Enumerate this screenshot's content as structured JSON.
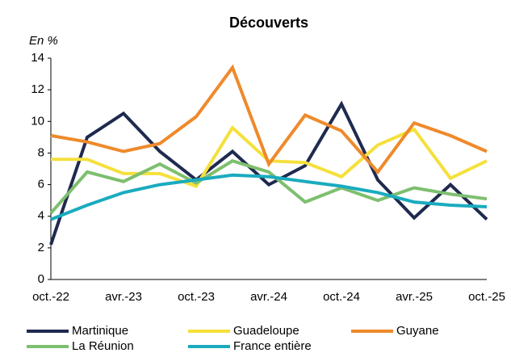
{
  "chart_data": {
    "type": "line",
    "title": "Découverts",
    "y_label": "En %",
    "categories": [
      "oct.-22",
      null,
      "avr.-23",
      null,
      "oct.-23",
      null,
      "avr.-24",
      null,
      "oct.-24",
      null,
      "avr.-25",
      null,
      "oct.-25"
    ],
    "series": [
      {
        "name": "Martinique",
        "color": "#1f2a4f",
        "values": [
          2.2,
          9.0,
          10.5,
          8.1,
          6.3,
          8.1,
          6.0,
          7.2,
          11.1,
          6.3,
          3.9,
          6.0,
          3.8
        ]
      },
      {
        "name": "Guadeloupe",
        "color": "#f5e03c",
        "values": [
          7.6,
          7.6,
          6.7,
          6.7,
          5.9,
          9.6,
          7.5,
          7.4,
          6.5,
          8.5,
          9.5,
          6.4,
          7.5
        ]
      },
      {
        "name": "Guyane",
        "color": "#ee8a2c",
        "values": [
          9.1,
          8.7,
          8.1,
          8.6,
          10.3,
          13.4,
          7.3,
          10.4,
          9.4,
          6.8,
          9.9,
          9.1,
          8.1
        ]
      },
      {
        "name": "La Réunion",
        "color": "#7dbf6e",
        "values": [
          4.2,
          6.8,
          6.2,
          7.3,
          6.1,
          7.5,
          6.8,
          4.9,
          5.8,
          5.0,
          5.8,
          5.4,
          5.1
        ]
      },
      {
        "name": "France entière",
        "color": "#1aabbf",
        "values": [
          3.8,
          4.7,
          5.5,
          6.0,
          6.3,
          6.6,
          6.5,
          6.2,
          5.9,
          5.5,
          4.9,
          4.7,
          4.6
        ]
      }
    ],
    "ylim": [
      0,
      14
    ],
    "yticks": [
      0,
      2,
      4,
      6,
      8,
      10,
      12,
      14
    ],
    "grid": false
  }
}
